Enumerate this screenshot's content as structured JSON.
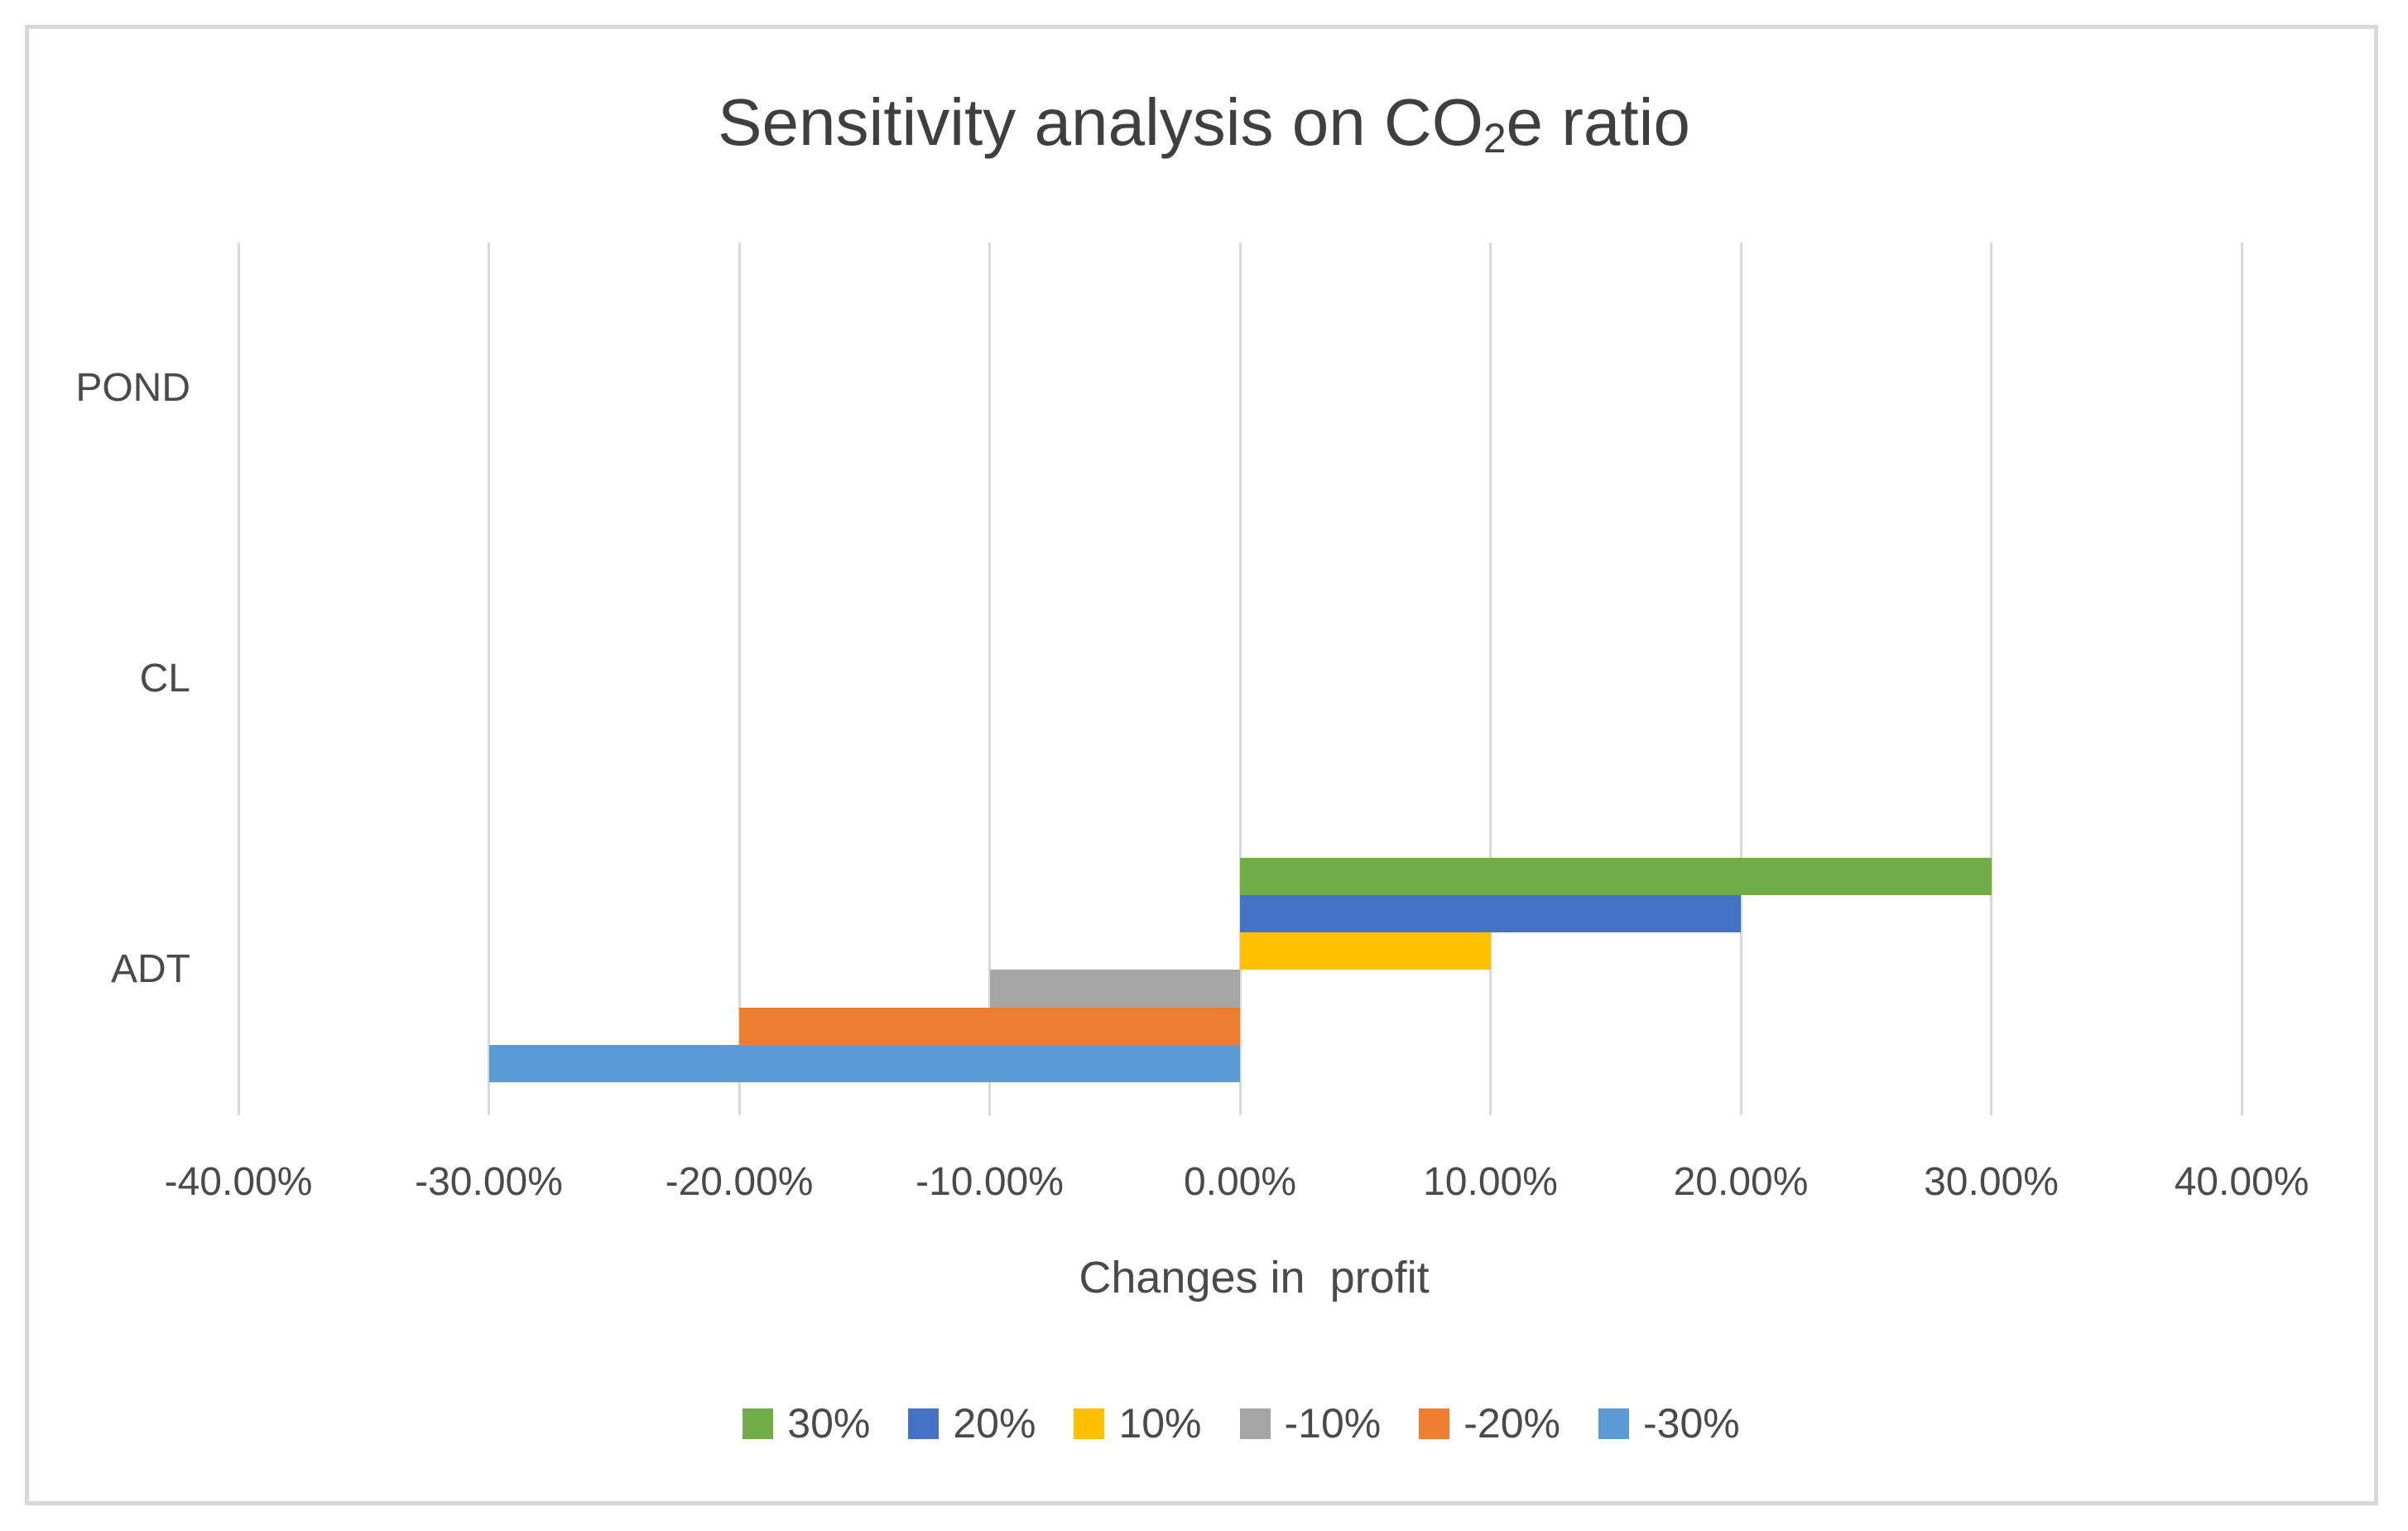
{
  "chart": {
    "title": {
      "pre": "Sensitivity analysis on CO",
      "sub": "2",
      "post": "e ratio"
    },
    "x_axis": {
      "label": "Changes in  profit",
      "tick_labels": [
        "-40.00%",
        "-30.00%",
        "-20.00%",
        "-10.00%",
        "0.00%",
        "10.00%",
        "20.00%",
        "30.00%",
        "40.00%"
      ]
    },
    "y_axis": {
      "categories": [
        "POND",
        "CL",
        "ADT"
      ]
    },
    "colors": {
      "gridline": "#d9d9d9",
      "frame_border": "#d8d8d8",
      "text": "#4a4a4a",
      "title_text": "#3f3f3f",
      "background": "#ffffff"
    }
  },
  "chart_data": {
    "type": "bar",
    "orientation": "horizontal",
    "title": "Sensitivity analysis on CO2e ratio",
    "xlabel": "Changes in  profit",
    "ylabel": "",
    "categories": [
      "POND",
      "CL",
      "ADT"
    ],
    "series": [
      {
        "name": "30%",
        "color": "#70AD47",
        "values": [
          0,
          0,
          30
        ]
      },
      {
        "name": "20%",
        "color": "#4472C4",
        "values": [
          0,
          0,
          20
        ]
      },
      {
        "name": "10%",
        "color": "#FFC000",
        "values": [
          0,
          0,
          10
        ]
      },
      {
        "name": "-10%",
        "color": "#A5A5A5",
        "values": [
          0,
          0,
          -10
        ]
      },
      {
        "name": "-20%",
        "color": "#ED7D31",
        "values": [
          0,
          0,
          -20
        ]
      },
      {
        "name": "-30%",
        "color": "#5B9BD5",
        "values": [
          0,
          0,
          -30
        ]
      }
    ],
    "xlim": [
      -40,
      40
    ],
    "x_tick_step": 10,
    "x_tick_format": "0.00%",
    "values_unit": "percent_change_in_profit",
    "grid": "vertical-only",
    "legend_position": "bottom"
  }
}
